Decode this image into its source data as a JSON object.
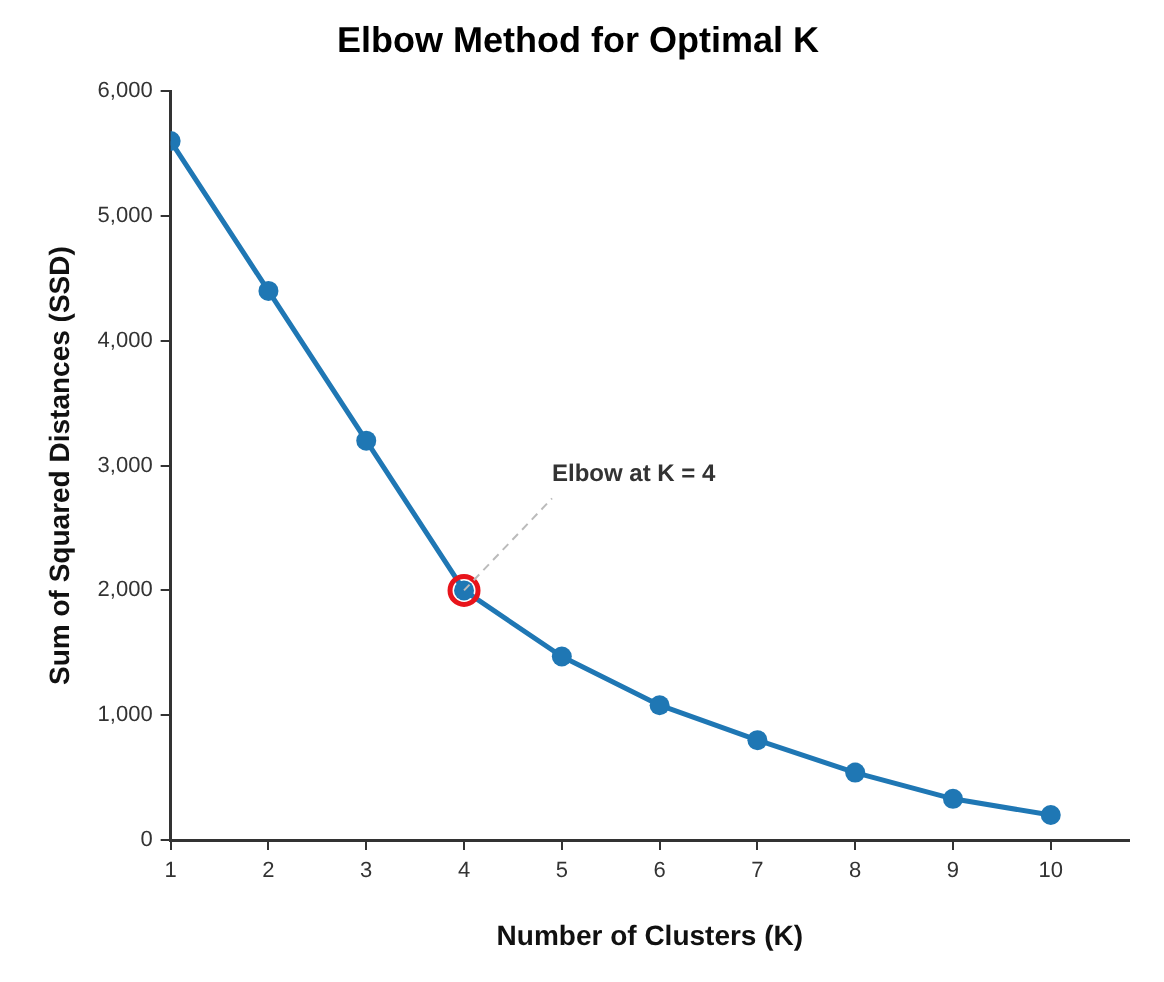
{
  "chart_data": {
    "type": "line",
    "title": "Elbow Method for Optimal K",
    "xlabel": "Number of Clusters (K)",
    "ylabel": "Sum of Squared Distances (SSD)",
    "x": [
      1,
      2,
      3,
      4,
      5,
      6,
      7,
      8,
      9,
      10
    ],
    "series": [
      {
        "color": "#1f77b4",
        "values": [
          5600,
          4400,
          3200,
          2000,
          1470,
          1080,
          800,
          540,
          330,
          200
        ],
        "marker": "circle"
      },
      {
        "type": "scatter",
        "x": [
          4
        ],
        "values": [
          2000
        ],
        "color": "#e8141b",
        "marker": "circle"
      }
    ],
    "xlim": [
      1,
      10.8
    ],
    "xticks": [
      1,
      2,
      3,
      4,
      5,
      6,
      7,
      8,
      9,
      10
    ],
    "ylim": [
      0,
      6000
    ],
    "yticks": [
      {
        "value": 0,
        "label": "0"
      },
      {
        "value": 1000,
        "label": "1,000"
      },
      {
        "value": 2000,
        "label": "2,000"
      },
      {
        "value": 3000,
        "label": "3,000"
      },
      {
        "value": 4000,
        "label": "4,000"
      },
      {
        "value": 5000,
        "label": "5,000"
      },
      {
        "value": 6000,
        "label": "6,000"
      }
    ],
    "annotations": [
      {
        "text": "Elbow at K = 4",
        "x": 4,
        "y": 2000
      }
    ],
    "grid": false,
    "legend": false
  }
}
